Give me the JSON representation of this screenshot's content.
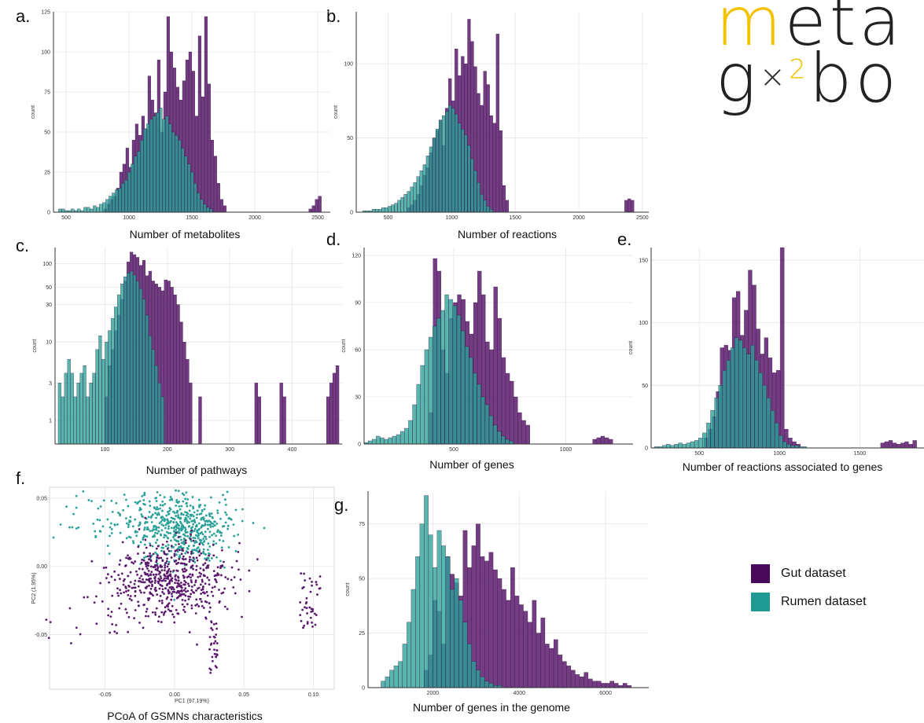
{
  "logo": {
    "line1_prefix": "m",
    "line1_rest": "eta",
    "line2_g": "g",
    "line2_sup": "2",
    "line2_rest": "bo",
    "colors": {
      "m": "#f2c200",
      "text": "#222",
      "sup": "#f2c200"
    }
  },
  "colors": {
    "gut": "#5c1a6e",
    "rumen": "#2aa198"
  },
  "legend": {
    "items": [
      {
        "label": "Gut dataset",
        "color": "#4a0a5c"
      },
      {
        "label": "Rumen dataset",
        "color": "#1f9a92"
      }
    ]
  },
  "panels": [
    {
      "letter": "a.",
      "caption": "Number of metabolites"
    },
    {
      "letter": "b.",
      "caption": "Number of reactions"
    },
    {
      "letter": "c.",
      "caption": "Number of pathways"
    },
    {
      "letter": "d.",
      "caption": "Number of genes"
    },
    {
      "letter": "e.",
      "caption": "Number of reactions associated to genes"
    },
    {
      "letter": "f.",
      "caption": "PCoA of GSMNs characteristics"
    },
    {
      "letter": "g.",
      "caption": "Number of genes in the genome"
    }
  ],
  "chart_data": [
    {
      "type": "bar",
      "id": "a",
      "ylabel": "count",
      "xlim": [
        400,
        2600
      ],
      "ylim": [
        0,
        125
      ],
      "xticks": [
        500,
        1000,
        1500,
        2000,
        2500
      ],
      "yticks": [
        0,
        25,
        50,
        75,
        100,
        125
      ],
      "gut": {
        "start": 800,
        "step": 25,
        "values": [
          2,
          5,
          8,
          10,
          15,
          25,
          30,
          40,
          28,
          45,
          55,
          48,
          60,
          52,
          85,
          70,
          62,
          95,
          50,
          75,
          122,
          100,
          90,
          78,
          70,
          82,
          95,
          100,
          88,
          60,
          110,
          72,
          122,
          80,
          45,
          35,
          18,
          8,
          4
        ]
      },
      "rumen": {
        "start": 440,
        "step": 25,
        "values": [
          2,
          2,
          1,
          1,
          2,
          1,
          2,
          1,
          3,
          3,
          2,
          4,
          3,
          5,
          6,
          8,
          10,
          12,
          14,
          15,
          18,
          20,
          25,
          30,
          35,
          38,
          45,
          52,
          55,
          58,
          60,
          62,
          65,
          58,
          60,
          55,
          50,
          48,
          45,
          40,
          35,
          30,
          25,
          18,
          12,
          8,
          5,
          3,
          2
        ]
      },
      "gut_tail": {
        "start": 2430,
        "step": 25,
        "values": [
          2,
          4,
          8,
          10
        ]
      }
    },
    {
      "type": "bar",
      "id": "b",
      "ylabel": "count",
      "xlim": [
        250,
        2550
      ],
      "ylim": [
        0,
        135
      ],
      "xticks": [
        500,
        1000,
        1500,
        2000,
        2500
      ],
      "yticks": [
        0,
        50,
        100
      ],
      "gut": {
        "start": 650,
        "step": 25,
        "values": [
          3,
          5,
          8,
          12,
          18,
          25,
          30,
          40,
          50,
          55,
          62,
          45,
          70,
          90,
          75,
          110,
          92,
          105,
          100,
          130,
          115,
          98,
          80,
          72,
          95,
          86,
          65,
          60,
          120,
          55,
          18,
          8
        ]
      },
      "rumen": {
        "start": 300,
        "step": 25,
        "values": [
          1,
          1,
          1,
          2,
          2,
          2,
          3,
          3,
          4,
          5,
          6,
          8,
          10,
          12,
          14,
          17,
          20,
          24,
          28,
          32,
          38,
          44,
          50,
          56,
          62,
          65,
          68,
          72,
          70,
          66,
          60,
          56,
          52,
          45,
          36,
          28,
          20,
          12,
          8,
          4,
          2
        ]
      },
      "gut_tail": {
        "start": 2360,
        "step": 25,
        "values": [
          8,
          9,
          8
        ]
      }
    },
    {
      "type": "bar",
      "id": "c",
      "ylabel": "count",
      "xlim": [
        20,
        480
      ],
      "yticks": [
        1,
        3,
        10,
        30,
        50,
        100
      ],
      "scale": "log",
      "gut": {
        "start": 100,
        "step": 5,
        "values": [
          2,
          5,
          8,
          14,
          22,
          35,
          60,
          105,
          140,
          130,
          120,
          95,
          110,
          70,
          80,
          60,
          55,
          50,
          45,
          62,
          60,
          50,
          40,
          30,
          18,
          10,
          6,
          3
        ]
      },
      "rumen": {
        "start": 25,
        "step": 5,
        "values": [
          3,
          2,
          4,
          6,
          4,
          2,
          3,
          4,
          5,
          2,
          3,
          4,
          8,
          12,
          6,
          10,
          14,
          20,
          28,
          40,
          55,
          68,
          75,
          80,
          72,
          60,
          48,
          35,
          22,
          12,
          8,
          5,
          3,
          2
        ]
      },
      "gut_tail": [
        {
          "x": 250,
          "v": 2
        },
        {
          "x": 340,
          "v": 3
        },
        {
          "x": 345,
          "v": 2
        },
        {
          "x": 380,
          "v": 3
        },
        {
          "x": 385,
          "v": 2
        },
        {
          "x": 455,
          "v": 2
        },
        {
          "x": 460,
          "v": 3
        },
        {
          "x": 465,
          "v": 4
        },
        {
          "x": 470,
          "v": 5
        }
      ],
      "xticks": [
        100,
        200,
        300,
        400
      ]
    },
    {
      "type": "bar",
      "id": "d",
      "ylabel": "count",
      "xlim": [
        100,
        1300
      ],
      "ylim": [
        0,
        125
      ],
      "xticks": [
        500,
        1000
      ],
      "yticks": [
        0,
        30,
        60,
        90,
        120
      ],
      "gut": {
        "start": 390,
        "step": 18,
        "values": [
          20,
          118,
          110,
          60,
          45,
          80,
          90,
          95,
          92,
          78,
          70,
          90,
          110,
          95,
          65,
          60,
          100,
          80,
          55,
          45,
          40,
          30,
          20,
          15,
          12
        ]
      },
      "rumen": {
        "start": 100,
        "step": 18,
        "values": [
          1,
          2,
          3,
          5,
          4,
          3,
          4,
          5,
          6,
          8,
          10,
          15,
          25,
          38,
          50,
          60,
          68,
          75,
          80,
          85,
          95,
          92,
          88,
          82,
          72,
          62,
          55,
          45,
          38,
          30,
          25,
          18,
          12,
          8,
          5,
          3,
          2
        ]
      },
      "gut_tail": {
        "start": 1120,
        "step": 18,
        "values": [
          3,
          4,
          5,
          4,
          3
        ]
      }
    },
    {
      "type": "bar",
      "id": "e",
      "ylabel": "count",
      "xlim": [
        200,
        1900
      ],
      "ylim": [
        0,
        160
      ],
      "xticks": [
        500,
        1000,
        1500
      ],
      "yticks": [
        0,
        50,
        100,
        150
      ],
      "gut": {
        "start": 530,
        "step": 25,
        "values": [
          8,
          15,
          25,
          45,
          80,
          82,
          78,
          120,
          125,
          90,
          110,
          142,
          130,
          95,
          75,
          88,
          72,
          60,
          62,
          160,
          15,
          8,
          5,
          3
        ]
      },
      "rumen": {
        "start": 220,
        "step": 25,
        "values": [
          1,
          1,
          2,
          3,
          2,
          3,
          4,
          3,
          4,
          5,
          6,
          8,
          12,
          20,
          30,
          40,
          50,
          62,
          70,
          80,
          88,
          86,
          80,
          75,
          82,
          70,
          60,
          50,
          40,
          30,
          20,
          10,
          5,
          3,
          2,
          2,
          1,
          1
        ]
      },
      "gut_tail": {
        "start": 1630,
        "step": 25,
        "values": [
          4,
          5,
          6,
          4,
          3,
          4,
          5,
          3,
          6
        ]
      }
    },
    {
      "type": "scatter",
      "id": "f",
      "xlabel": "PC1 (97.19%)",
      "ylabel": "PC2 (1.95%)",
      "xlim": [
        -0.09,
        0.115
      ],
      "ylim": [
        -0.09,
        0.058
      ],
      "xticks": [
        -0.05,
        0.0,
        0.05,
        0.1
      ],
      "xtick_labels": [
        "-0.05",
        "0.00",
        "0.05",
        "0.10"
      ],
      "yticks": [
        -0.05,
        0.0,
        0.05
      ],
      "ytick_labels": [
        "-0.05",
        "0.00",
        "0.05"
      ]
    },
    {
      "type": "bar",
      "id": "g",
      "ylabel": "count",
      "xlim": [
        500,
        7000
      ],
      "ylim": [
        0,
        90
      ],
      "xticks": [
        2000,
        4000,
        6000
      ],
      "yticks": [
        0,
        25,
        50,
        75
      ],
      "gut": {
        "start": 1800,
        "step": 100,
        "values": [
          8,
          15,
          40,
          35,
          20,
          60,
          52,
          48,
          42,
          72,
          55,
          65,
          75,
          60,
          58,
          62,
          54,
          50,
          45,
          40,
          55,
          42,
          38,
          35,
          30,
          40,
          25,
          32,
          20,
          18,
          22,
          15,
          12,
          10,
          8,
          6,
          5,
          7,
          4,
          3,
          3,
          2,
          2,
          3,
          2,
          1,
          2,
          1
        ]
      },
      "rumen": {
        "start": 800,
        "step": 100,
        "values": [
          3,
          5,
          8,
          10,
          12,
          20,
          30,
          45,
          60,
          75,
          88,
          70,
          55,
          72,
          65,
          60,
          45,
          50,
          40,
          30,
          20,
          12,
          8,
          5,
          3,
          2,
          1,
          1
        ]
      }
    }
  ]
}
